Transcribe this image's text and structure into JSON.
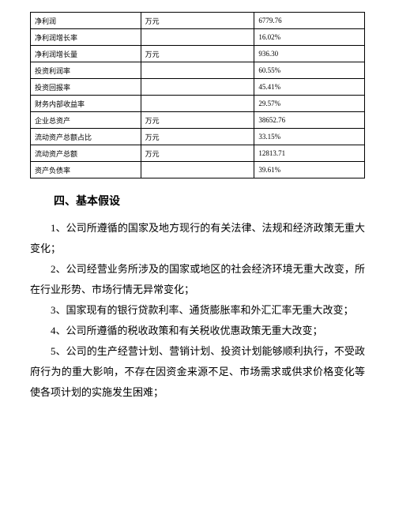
{
  "table": {
    "rows": [
      {
        "label": "净利润",
        "unit": "万元",
        "value": "6779.76"
      },
      {
        "label": "净利润增长率",
        "unit": "",
        "value": "16.02%"
      },
      {
        "label": "净利润增长量",
        "unit": "万元",
        "value": "936.30"
      },
      {
        "label": "投资利润率",
        "unit": "",
        "value": "60.55%"
      },
      {
        "label": "投资回报率",
        "unit": "",
        "value": "45.41%"
      },
      {
        "label": "财务内部收益率",
        "unit": "",
        "value": "29.57%"
      },
      {
        "label": "企业总资产",
        "unit": "万元",
        "value": "38652.76"
      },
      {
        "label": "流动资产总额占比",
        "unit": "万元",
        "value": "33.15%"
      },
      {
        "label": "流动资产总额",
        "unit": "万元",
        "value": "12813.71"
      },
      {
        "label": "资产负债率",
        "unit": "",
        "value": "39.61%"
      }
    ]
  },
  "heading": "四、基本假设",
  "paragraphs": [
    "1、公司所遵循的国家及地方现行的有关法律、法规和经济政策无重大变化；",
    "2、公司经营业务所涉及的国家或地区的社会经济环境无重大改变，所在行业形势、市场行情无异常变化；",
    "3、国家现有的银行贷款利率、通货膨胀率和外汇汇率无重大改变；",
    "4、公司所遵循的税收政策和有关税收优惠政策无重大改变；",
    "5、公司的生产经营计划、营销计划、投资计划能够顺利执行，不受政府行为的重大影响，不存在因资金来源不足、市场需求或供求价格变化等使各项计划的实施发生困难；"
  ]
}
